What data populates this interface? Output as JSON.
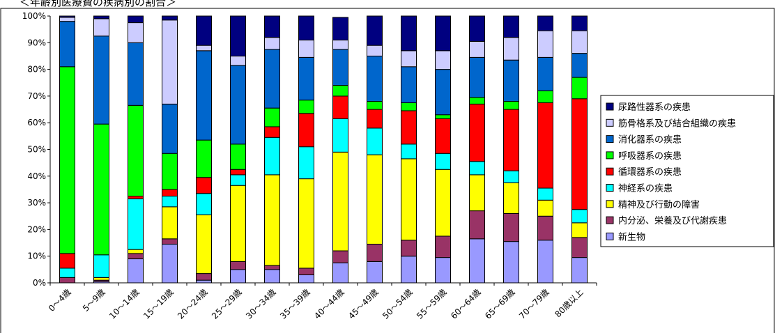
{
  "chart_data": {
    "type": "bar",
    "stacked": true,
    "title": "＜年齢別医療費の疾病別の割合＞",
    "xlabel": "",
    "ylabel": "",
    "ylim": [
      0,
      100
    ],
    "yticks": [
      "0%",
      "10%",
      "20%",
      "30%",
      "40%",
      "50%",
      "60%",
      "70%",
      "80%",
      "90%",
      "100%"
    ],
    "grid": false,
    "legend": "right",
    "categories": [
      "0～4歳",
      "5～9歳",
      "10～14歳",
      "15～19歳",
      "20～24歳",
      "25～29歳",
      "30～34歳",
      "35～39歳",
      "40～44歳",
      "45～49歳",
      "50～54歳",
      "55～59歳",
      "60～64歳",
      "65～69歳",
      "70～79歳",
      "80歳以上"
    ],
    "series": [
      {
        "name": "新生物",
        "color": "#9999ff",
        "values": [
          0,
          0.5,
          9,
          14.5,
          1,
          5,
          5,
          3,
          7.5,
          8,
          10,
          9.5,
          16.5,
          15.5,
          16,
          9.5
        ]
      },
      {
        "name": "内分泌、栄養及び代謝疾患",
        "color": "#993366",
        "values": [
          2,
          0.5,
          2,
          2,
          2.5,
          3,
          1.5,
          2.5,
          4.5,
          6.5,
          6,
          8,
          10.5,
          10.5,
          9,
          7.5
        ]
      },
      {
        "name": "精神及び行動の障害",
        "color": "#ffff00",
        "values": [
          0,
          1,
          1.5,
          12,
          22,
          28.5,
          34,
          33.5,
          37,
          33.5,
          30.5,
          25,
          13.5,
          11.5,
          6,
          5.5
        ]
      },
      {
        "name": "神経系の疾患",
        "color": "#00ffff",
        "values": [
          3.5,
          8.5,
          19,
          4,
          8,
          4,
          14,
          12,
          12.5,
          10,
          5.5,
          6,
          5,
          4.5,
          4.5,
          5
        ]
      },
      {
        "name": "循環器系の疾患",
        "color": "#ff0000",
        "values": [
          5.5,
          0,
          1,
          2.5,
          6,
          2,
          4,
          12.5,
          8.5,
          7,
          12.5,
          13,
          21.5,
          23,
          32,
          41.5
        ]
      },
      {
        "name": "呼吸器系の疾患",
        "color": "#00ff00",
        "values": [
          70,
          49,
          34,
          13.5,
          14,
          9.5,
          7,
          5,
          4,
          3,
          3,
          1.5,
          2.5,
          3,
          4.5,
          8
        ]
      },
      {
        "name": "消化器系の疾患",
        "color": "#0066cc",
        "values": [
          17,
          33,
          23.5,
          18.5,
          33.5,
          29.5,
          22,
          16,
          13.5,
          17,
          13.5,
          17,
          15,
          15.5,
          12.5,
          9
        ]
      },
      {
        "name": "筋骨格系及び結合組織の疾患",
        "color": "#ccccff",
        "values": [
          1.5,
          6.5,
          7.5,
          31.5,
          2,
          3.5,
          4.5,
          6.5,
          3.5,
          4,
          6,
          7,
          6,
          8.5,
          10,
          8.5
        ]
      },
      {
        "name": "尿路性器系の疾患",
        "color": "#000080",
        "values": [
          0.5,
          1,
          2.5,
          1.5,
          11,
          15,
          8,
          9,
          8.5,
          11,
          13,
          13,
          9.5,
          8,
          5.5,
          5.5
        ]
      }
    ]
  }
}
